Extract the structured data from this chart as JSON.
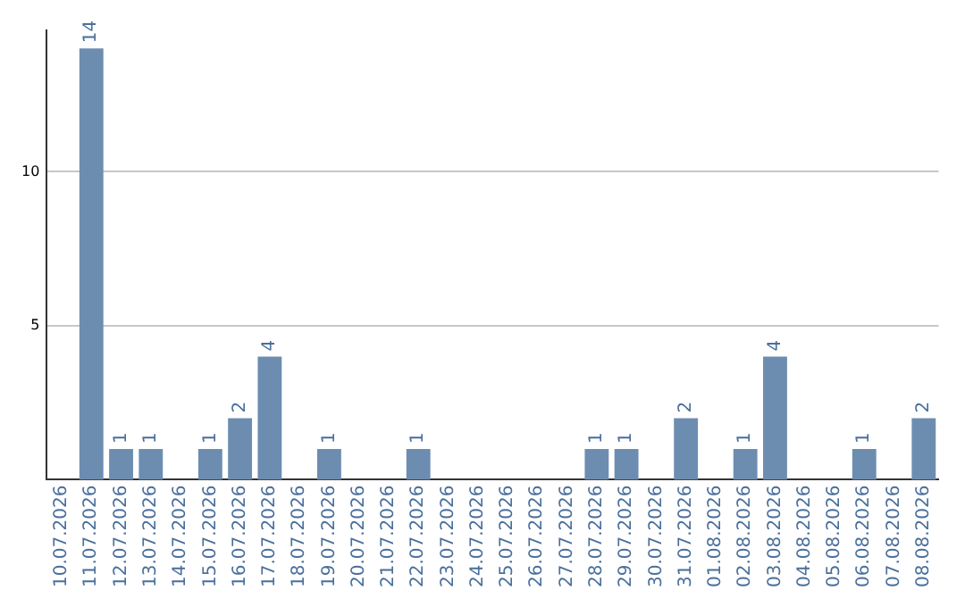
{
  "chart_data": {
    "type": "bar",
    "categories": [
      "10.07.2026",
      "11.07.2026",
      "12.07.2026",
      "13.07.2026",
      "14.07.2026",
      "15.07.2026",
      "16.07.2026",
      "17.07.2026",
      "18.07.2026",
      "19.07.2026",
      "20.07.2026",
      "21.07.2026",
      "22.07.2026",
      "23.07.2026",
      "24.07.2026",
      "25.07.2026",
      "26.07.2026",
      "27.07.2026",
      "28.07.2026",
      "29.07.2026",
      "30.07.2026",
      "31.07.2026",
      "01.08.2026",
      "02.08.2026",
      "03.08.2026",
      "04.08.2026",
      "05.08.2026",
      "06.08.2026",
      "07.08.2026",
      "08.08.2026"
    ],
    "values": [
      0,
      14,
      1,
      1,
      0,
      1,
      2,
      4,
      0,
      1,
      0,
      0,
      1,
      0,
      0,
      0,
      0,
      0,
      1,
      1,
      0,
      2,
      0,
      1,
      4,
      0,
      0,
      1,
      0,
      2
    ],
    "value_labels": [
      null,
      "14",
      "1",
      "1",
      null,
      "1",
      "2",
      "4",
      null,
      "1",
      null,
      null,
      "1",
      null,
      null,
      null,
      null,
      null,
      "1",
      "1",
      null,
      "2",
      null,
      "1",
      "4",
      null,
      null,
      "1",
      null,
      "2"
    ],
    "color": "#6d8db0",
    "ylim": [
      0,
      14.6
    ],
    "yticks": [
      5,
      10
    ],
    "grid": "y"
  }
}
